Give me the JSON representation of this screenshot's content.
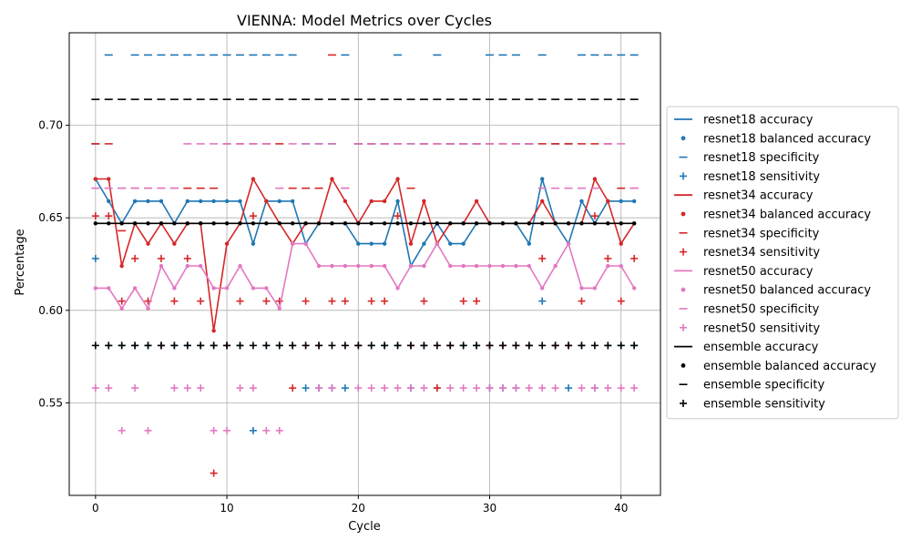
{
  "chart_data": {
    "type": "line",
    "title": "VIENNA: Model Metrics over Cycles",
    "xlabel": "Cycle",
    "ylabel": "Percentage",
    "xlim": [
      -2,
      43
    ],
    "ylim": [
      0.5,
      0.75
    ],
    "xticks": [
      0,
      10,
      20,
      30,
      40
    ],
    "yticks": [
      0.55,
      0.6,
      0.65,
      0.7
    ],
    "grid": true,
    "legend_position": "right, outside plot",
    "x": [
      0,
      1,
      2,
      3,
      4,
      5,
      6,
      7,
      8,
      9,
      10,
      11,
      12,
      13,
      14,
      15,
      16,
      17,
      18,
      19,
      20,
      21,
      22,
      23,
      24,
      25,
      26,
      27,
      28,
      29,
      30,
      31,
      32,
      33,
      34,
      35,
      36,
      37,
      38,
      39,
      40,
      41
    ],
    "models": [
      {
        "name": "resnet18",
        "color": "#1f77b4",
        "accuracy": [
          0.671,
          0.659,
          0.647,
          0.659,
          0.659,
          0.659,
          0.647,
          0.659,
          0.659,
          0.659,
          0.659,
          0.659,
          0.636,
          0.659,
          0.659,
          0.659,
          0.636,
          0.647,
          0.647,
          0.647,
          0.636,
          0.636,
          0.636,
          0.659,
          0.624,
          0.636,
          0.647,
          0.636,
          0.636,
          0.647,
          0.647,
          0.647,
          0.647,
          0.636,
          0.671,
          0.647,
          0.636,
          0.659,
          0.647,
          0.659,
          0.659,
          0.659
        ],
        "specificity": [
          0.69,
          0.738,
          0.666,
          0.738,
          0.738,
          0.738,
          0.738,
          0.738,
          0.738,
          0.738,
          0.738,
          0.738,
          0.738,
          0.738,
          0.738,
          0.738,
          0.69,
          0.69,
          0.69,
          0.738,
          0.69,
          0.69,
          0.69,
          0.738,
          0.69,
          0.69,
          0.738,
          0.69,
          0.69,
          0.69,
          0.738,
          0.738,
          0.738,
          0.69,
          0.738,
          0.69,
          0.69,
          0.738,
          0.738,
          0.738,
          0.738,
          0.738
        ],
        "sensitivity": [
          0.628,
          0.581,
          0.581,
          0.581,
          0.581,
          0.581,
          0.581,
          0.581,
          0.581,
          0.581,
          0.581,
          0.581,
          0.535,
          0.581,
          0.581,
          0.581,
          0.558,
          0.558,
          0.558,
          0.558,
          0.581,
          0.581,
          0.581,
          0.581,
          0.558,
          0.581,
          0.558,
          0.581,
          0.581,
          0.581,
          0.558,
          0.558,
          0.558,
          0.581,
          0.605,
          0.581,
          0.558,
          0.581,
          0.558,
          0.581,
          0.581,
          0.581
        ]
      },
      {
        "name": "resnet34",
        "color": "#d62728",
        "accuracy": [
          0.671,
          0.671,
          0.624,
          0.647,
          0.636,
          0.647,
          0.636,
          0.647,
          0.647,
          0.589,
          0.636,
          0.647,
          0.671,
          0.659,
          0.647,
          0.636,
          0.647,
          0.647,
          0.671,
          0.659,
          0.647,
          0.659,
          0.659,
          0.671,
          0.636,
          0.659,
          0.636,
          0.647,
          0.647,
          0.659,
          0.647,
          0.647,
          0.647,
          0.647,
          0.659,
          0.647,
          0.647,
          0.647,
          0.671,
          0.659,
          0.636,
          0.647
        ],
        "specificity": [
          0.69,
          0.69,
          0.643,
          0.666,
          0.666,
          0.666,
          0.666,
          0.666,
          0.666,
          0.666,
          0.69,
          0.69,
          0.69,
          0.69,
          0.69,
          0.666,
          0.666,
          0.666,
          0.738,
          0.666,
          0.69,
          0.69,
          0.69,
          0.69,
          0.666,
          0.69,
          0.69,
          0.69,
          0.69,
          0.69,
          0.69,
          0.69,
          0.69,
          0.69,
          0.69,
          0.69,
          0.69,
          0.69,
          0.69,
          0.69,
          0.666,
          0.666
        ],
        "sensitivity": [
          0.651,
          0.651,
          0.605,
          0.628,
          0.605,
          0.628,
          0.605,
          0.628,
          0.605,
          0.512,
          0.581,
          0.605,
          0.651,
          0.605,
          0.605,
          0.558,
          0.605,
          0.581,
          0.605,
          0.605,
          0.581,
          0.605,
          0.605,
          0.651,
          0.581,
          0.605,
          0.558,
          0.581,
          0.605,
          0.605,
          0.581,
          0.581,
          0.581,
          0.581,
          0.628,
          0.581,
          0.581,
          0.605,
          0.651,
          0.628,
          0.605,
          0.628
        ]
      },
      {
        "name": "resnet50",
        "color": "#e377c2",
        "accuracy": [
          0.612,
          0.612,
          0.601,
          0.612,
          0.601,
          0.624,
          0.612,
          0.624,
          0.624,
          0.612,
          0.612,
          0.624,
          0.612,
          0.612,
          0.601,
          0.636,
          0.636,
          0.624,
          0.624,
          0.624,
          0.624,
          0.624,
          0.624,
          0.612,
          0.624,
          0.624,
          0.636,
          0.624,
          0.624,
          0.624,
          0.624,
          0.624,
          0.624,
          0.624,
          0.612,
          0.624,
          0.636,
          0.612,
          0.612,
          0.624,
          0.624,
          0.612
        ],
        "specificity": [
          0.666,
          0.666,
          0.666,
          0.666,
          0.666,
          0.666,
          0.666,
          0.69,
          0.69,
          0.69,
          0.69,
          0.69,
          0.69,
          0.69,
          0.666,
          0.69,
          0.69,
          0.69,
          0.69,
          0.666,
          0.69,
          0.69,
          0.69,
          0.69,
          0.69,
          0.69,
          0.69,
          0.69,
          0.69,
          0.69,
          0.69,
          0.69,
          0.69,
          0.69,
          0.666,
          0.666,
          0.666,
          0.666,
          0.666,
          0.69,
          0.69,
          0.666
        ],
        "sensitivity": [
          0.558,
          0.558,
          0.535,
          0.558,
          0.535,
          0.581,
          0.558,
          0.558,
          0.558,
          0.535,
          0.535,
          0.558,
          0.558,
          0.535,
          0.535,
          0.581,
          0.581,
          0.558,
          0.558,
          0.581,
          0.558,
          0.558,
          0.558,
          0.558,
          0.558,
          0.558,
          0.581,
          0.558,
          0.558,
          0.558,
          0.558,
          0.558,
          0.558,
          0.558,
          0.558,
          0.558,
          0.581,
          0.558,
          0.558,
          0.558,
          0.558,
          0.558
        ]
      },
      {
        "name": "ensemble",
        "color": "#000000",
        "accuracy": [
          0.647,
          0.647,
          0.647,
          0.647,
          0.647,
          0.647,
          0.647,
          0.647,
          0.647,
          0.647,
          0.647,
          0.647,
          0.647,
          0.647,
          0.647,
          0.647,
          0.647,
          0.647,
          0.647,
          0.647,
          0.647,
          0.647,
          0.647,
          0.647,
          0.647,
          0.647,
          0.647,
          0.647,
          0.647,
          0.647,
          0.647,
          0.647,
          0.647,
          0.647,
          0.647,
          0.647,
          0.647,
          0.647,
          0.647,
          0.647,
          0.647,
          0.647
        ],
        "specificity": [
          0.714,
          0.714,
          0.714,
          0.714,
          0.714,
          0.714,
          0.714,
          0.714,
          0.714,
          0.714,
          0.714,
          0.714,
          0.714,
          0.714,
          0.714,
          0.714,
          0.714,
          0.714,
          0.714,
          0.714,
          0.714,
          0.714,
          0.714,
          0.714,
          0.714,
          0.714,
          0.714,
          0.714,
          0.714,
          0.714,
          0.714,
          0.714,
          0.714,
          0.714,
          0.714,
          0.714,
          0.714,
          0.714,
          0.714,
          0.714,
          0.714,
          0.714
        ],
        "sensitivity": [
          0.581,
          0.581,
          0.581,
          0.581,
          0.581,
          0.581,
          0.581,
          0.581,
          0.581,
          0.581,
          0.581,
          0.581,
          0.581,
          0.581,
          0.581,
          0.581,
          0.581,
          0.581,
          0.581,
          0.581,
          0.581,
          0.581,
          0.581,
          0.581,
          0.581,
          0.581,
          0.581,
          0.581,
          0.581,
          0.581,
          0.581,
          0.581,
          0.581,
          0.581,
          0.581,
          0.581,
          0.581,
          0.581,
          0.581,
          0.581,
          0.581,
          0.581
        ]
      }
    ],
    "legend": [
      {
        "label": "resnet18 accuracy",
        "model": "resnet18",
        "marker": "line"
      },
      {
        "label": "resnet18 balanced accuracy",
        "model": "resnet18",
        "marker": "dot"
      },
      {
        "label": "resnet18 specificity",
        "model": "resnet18",
        "marker": "dash"
      },
      {
        "label": "resnet18 sensitivity",
        "model": "resnet18",
        "marker": "plus"
      },
      {
        "label": "resnet34 accuracy",
        "model": "resnet34",
        "marker": "line"
      },
      {
        "label": "resnet34 balanced accuracy",
        "model": "resnet34",
        "marker": "dot"
      },
      {
        "label": "resnet34 specificity",
        "model": "resnet34",
        "marker": "dash"
      },
      {
        "label": "resnet34 sensitivity",
        "model": "resnet34",
        "marker": "plus"
      },
      {
        "label": "resnet50 accuracy",
        "model": "resnet50",
        "marker": "line"
      },
      {
        "label": "resnet50 balanced accuracy",
        "model": "resnet50",
        "marker": "dot"
      },
      {
        "label": "resnet50 specificity",
        "model": "resnet50",
        "marker": "dash"
      },
      {
        "label": "resnet50 sensitivity",
        "model": "resnet50",
        "marker": "plus"
      },
      {
        "label": "ensemble accuracy",
        "model": "ensemble",
        "marker": "line"
      },
      {
        "label": "ensemble balanced accuracy",
        "model": "ensemble",
        "marker": "dot"
      },
      {
        "label": "ensemble specificity",
        "model": "ensemble",
        "marker": "dash"
      },
      {
        "label": "ensemble sensitivity",
        "model": "ensemble",
        "marker": "plus"
      }
    ]
  }
}
